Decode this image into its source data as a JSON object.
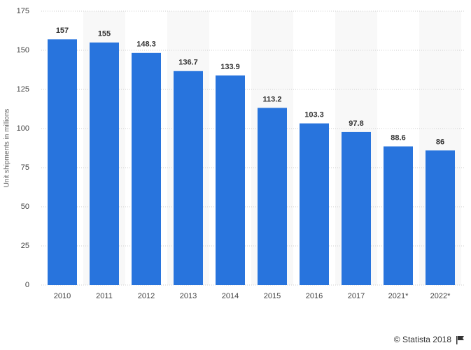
{
  "chart_data": {
    "type": "bar",
    "y_label": "Unit shipments in millions",
    "categories": [
      "2010",
      "2011",
      "2012",
      "2013",
      "2014",
      "2015",
      "2016",
      "2017",
      "2021*",
      "2022*"
    ],
    "values": [
      157,
      155,
      148.3,
      136.7,
      133.9,
      113.2,
      103.3,
      97.8,
      88.6,
      86
    ],
    "color": "#2874dd",
    "ylim": [
      0,
      175
    ],
    "yticks": [
      0,
      25,
      50,
      75,
      100,
      125,
      150,
      175
    ],
    "grid": true,
    "source": "© Statista 2018"
  }
}
